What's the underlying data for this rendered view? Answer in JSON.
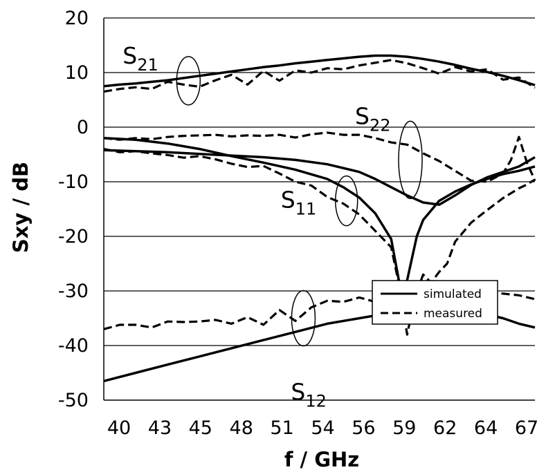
{
  "chart_data": {
    "type": "line",
    "title": "",
    "xlabel": "f / GHz",
    "ylabel": "Sxy / dB",
    "x_tick_labels": [
      "40",
      "43",
      "45",
      "48",
      "51",
      "54",
      "56",
      "59",
      "62",
      "64",
      "67"
    ],
    "xlim": [
      40,
      67
    ],
    "ylim": [
      -50,
      20
    ],
    "yticks": [
      20,
      10,
      0,
      -10,
      -20,
      -30,
      -40,
      -50
    ],
    "grid": "horizontal",
    "legend": {
      "placement": "bottom-right",
      "entries": [
        {
          "label": "simulated",
          "style": "solid"
        },
        {
          "label": "measured",
          "style": "dashed"
        }
      ]
    },
    "annotations": [
      {
        "main": "S",
        "sub": "21",
        "x": 45.3,
        "y": 8.5
      },
      {
        "main": "S",
        "sub": "22",
        "x": 59.2,
        "y": -6
      },
      {
        "main": "S",
        "sub": "11",
        "x": 55.2,
        "y": -13.5
      },
      {
        "main": "S",
        "sub": "12",
        "x": 52.5,
        "y": -35
      }
    ],
    "series": [
      {
        "style": "solid",
        "color": "#000000",
        "x": [
          40,
          41,
          42,
          43,
          44,
          45,
          46,
          47,
          48,
          49,
          50,
          51,
          52,
          53,
          54,
          55,
          56,
          57,
          58,
          59,
          60,
          61,
          62,
          63,
          64,
          65,
          66,
          67
        ],
        "y": [
          7.5,
          7.8,
          8.0,
          8.3,
          8.6,
          9.0,
          9.4,
          9.8,
          10.2,
          10.6,
          11.0,
          11.3,
          11.7,
          12.0,
          12.3,
          12.6,
          12.9,
          13.1,
          13.1,
          12.9,
          12.5,
          12.0,
          11.4,
          10.7,
          10.1,
          9.4,
          8.6,
          7.7
        ]
      },
      {
        "style": "dashed",
        "color": "#000000",
        "x": [
          40,
          41,
          42,
          43,
          44,
          45,
          46,
          47,
          48,
          49,
          50,
          51,
          52,
          53,
          54,
          55,
          56,
          57,
          58,
          59,
          60,
          61,
          62,
          63,
          64,
          65,
          66,
          67
        ],
        "y": [
          6.5,
          7.0,
          7.3,
          7.0,
          8.3,
          7.8,
          7.4,
          8.6,
          9.6,
          7.8,
          10.3,
          8.5,
          10.4,
          10.0,
          10.8,
          10.6,
          11.3,
          11.8,
          12.3,
          11.7,
          10.8,
          9.8,
          11.0,
          10.2,
          10.6,
          8.7,
          9.1,
          7.2
        ]
      },
      {
        "style": "solid",
        "color": "#000000",
        "x": [
          40,
          42,
          44,
          46,
          48,
          50,
          52,
          54,
          55,
          56,
          57,
          58,
          58.6,
          59,
          59.6,
          60,
          61,
          62,
          63,
          64,
          65,
          66,
          67
        ],
        "y": [
          -2.0,
          -2.3,
          -3.0,
          -4.0,
          -5.3,
          -6.5,
          -7.8,
          -9.5,
          -11.0,
          -12.9,
          -15.8,
          -20.5,
          -30.0,
          -28.0,
          -20.0,
          -17.0,
          -13.5,
          -11.8,
          -10.5,
          -9.5,
          -8.6,
          -8.0,
          -7.2
        ]
      },
      {
        "style": "solid",
        "color": "#000000",
        "x": [
          40,
          42,
          44,
          46,
          48,
          50,
          52,
          54,
          56,
          57,
          58,
          59,
          60,
          61,
          62,
          63,
          64,
          65,
          66,
          67
        ],
        "y": [
          -4.2,
          -4.4,
          -4.6,
          -4.9,
          -5.2,
          -5.5,
          -6.0,
          -6.8,
          -8.2,
          -9.5,
          -11.0,
          -12.5,
          -13.8,
          -14.2,
          -12.5,
          -10.6,
          -9.2,
          -8.2,
          -7.2,
          -5.5
        ]
      },
      {
        "style": "dashed",
        "color": "#000000",
        "x": [
          40,
          41,
          42,
          43,
          44,
          45,
          46,
          47,
          48,
          49,
          50,
          51,
          52,
          53,
          54,
          55,
          56,
          57,
          58,
          58.5,
          59,
          59.5,
          60,
          60.5,
          61,
          61.5,
          62,
          63,
          64,
          65,
          66,
          66.5,
          67
        ],
        "y": [
          -4.0,
          -4.6,
          -4.4,
          -4.8,
          -5.1,
          -5.6,
          -5.3,
          -5.9,
          -6.7,
          -7.3,
          -7.1,
          -8.5,
          -10.0,
          -10.7,
          -12.8,
          -14.0,
          -16.0,
          -19.0,
          -22.0,
          -29.0,
          -38.0,
          -31.0,
          -27.0,
          -28.5,
          -26.5,
          -25.0,
          -21.0,
          -17.5,
          -15.2,
          -13.0,
          -11.2,
          -10.5,
          -9.6
        ]
      },
      {
        "style": "dashed",
        "color": "#000000",
        "x": [
          40,
          41,
          42,
          43,
          44,
          45,
          46,
          47,
          48,
          49,
          50,
          51,
          52,
          53,
          54,
          55,
          56,
          57,
          58,
          59,
          60,
          61,
          62,
          63,
          64,
          65,
          65.5,
          66,
          66.5,
          67
        ],
        "y": [
          -2.0,
          -2.3,
          -2.0,
          -2.2,
          -1.8,
          -1.6,
          -1.5,
          -1.4,
          -1.7,
          -1.5,
          -1.6,
          -1.4,
          -1.9,
          -1.3,
          -1.0,
          -1.4,
          -1.4,
          -2.0,
          -2.8,
          -3.2,
          -4.8,
          -6.2,
          -8.0,
          -9.8,
          -10.0,
          -8.5,
          -6.0,
          -1.8,
          -6.5,
          -9.8
        ]
      },
      {
        "style": "solid",
        "color": "#000000",
        "x": [
          40,
          42,
          44,
          46,
          48,
          50,
          52,
          54,
          56,
          58,
          59,
          60,
          61,
          62,
          63,
          64,
          65,
          66,
          67
        ],
        "y": [
          -46.5,
          -45.0,
          -43.5,
          -42.0,
          -40.5,
          -39.0,
          -37.5,
          -36.0,
          -35.0,
          -34.0,
          -33.3,
          -32.8,
          -32.2,
          -32.8,
          -33.5,
          -34.3,
          -35.0,
          -36.0,
          -36.7
        ]
      },
      {
        "style": "dashed",
        "color": "#000000",
        "x": [
          40,
          41,
          42,
          43,
          44,
          45,
          46,
          47,
          48,
          49,
          50,
          51,
          52,
          53,
          54,
          55,
          56,
          57,
          58,
          59,
          60,
          61,
          62,
          63,
          64,
          65,
          66,
          67
        ],
        "y": [
          -37.0,
          -36.2,
          -36.2,
          -36.7,
          -35.6,
          -35.7,
          -35.6,
          -35.3,
          -36.0,
          -34.8,
          -36.2,
          -33.5,
          -35.5,
          -33.0,
          -31.8,
          -32.0,
          -31.2,
          -32.0,
          -30.5,
          -31.0,
          -30.3,
          -30.0,
          -30.5,
          -29.8,
          -30.2,
          -30.5,
          -30.8,
          -31.5
        ]
      }
    ]
  }
}
